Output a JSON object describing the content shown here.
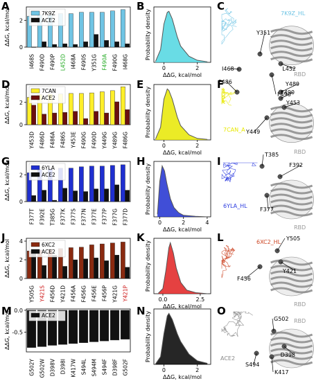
{
  "axis_label_ddg": "ΔΔG, kcal/mol",
  "axis_label_density": "Probability density",
  "chart_data": [
    {
      "panel": "A",
      "type": "bar",
      "categories": [
        "I468S",
        "F490D",
        "F490P",
        "L452D",
        "I468A",
        "F490S",
        "Y351G",
        "F490A",
        "F490G",
        "I468G"
      ],
      "series": [
        {
          "name": "7K9Z",
          "color": "#6fc4e4",
          "values": [
            2.3,
            2.4,
            2.4,
            2.5,
            2.5,
            2.6,
            2.6,
            2.6,
            2.7,
            2.8
          ]
        },
        {
          "name": "ACE2",
          "color": "#111111",
          "values": [
            0.0,
            0.4,
            0.2,
            0.25,
            0.2,
            0.4,
            0.95,
            0.5,
            0.4,
            0.25
          ]
        }
      ],
      "ylim": [
        0,
        3
      ],
      "yticks": [
        "0",
        "2"
      ],
      "ylabel": "ΔΔG, kcal/mol",
      "legend": "top-left",
      "category_colors": [
        "#000",
        "#000",
        "#000",
        "#22aa22",
        "#000",
        "#000",
        "#000",
        "#22aa22",
        "#000",
        "#000"
      ]
    },
    {
      "panel": "B",
      "type": "area",
      "color": "#4fd6e0",
      "x": [
        -0.5,
        -0.2,
        0,
        0.2,
        0.3,
        0.5,
        0.8,
        1.0,
        1.5,
        2.0,
        2.6
      ],
      "y": [
        0.02,
        0.25,
        0.75,
        0.98,
        1.0,
        0.85,
        0.5,
        0.32,
        0.12,
        0.04,
        0.01
      ],
      "xlim": [
        -0.6,
        2.8
      ],
      "xticks": [
        "0",
        "2"
      ],
      "xlabel": "ΔΔG, kcal/mol",
      "ylabel": "Probability density"
    },
    {
      "panel": "D",
      "type": "bar",
      "categories": [
        "Y453D",
        "F486D",
        "F486A",
        "F486S",
        "Y453E",
        "F490G",
        "F490D",
        "Y449G",
        "Y489G",
        "F486G"
      ],
      "series": [
        {
          "name": "7CAN",
          "color": "#ffef2a",
          "values": [
            2.45,
            2.7,
            2.75,
            2.75,
            2.8,
            2.8,
            2.85,
            2.95,
            3.05,
            3.4
          ]
        },
        {
          "name": "ACE2",
          "color": "#6b0f0f",
          "values": [
            1.75,
            0.95,
            1.05,
            1.1,
            1.2,
            0.55,
            1.2,
            1.05,
            2.05,
            1.35
          ]
        }
      ],
      "ylim": [
        0,
        3.6
      ],
      "yticks": [
        "0",
        "2"
      ],
      "ylabel": "ΔΔG, kcal/mol",
      "legend": "top-left"
    },
    {
      "panel": "E",
      "type": "area",
      "color": "#e8e800",
      "x": [
        -0.5,
        -0.2,
        0,
        0.2,
        0.3,
        0.5,
        0.8,
        1.0,
        1.5,
        2.0,
        2.6
      ],
      "y": [
        0.02,
        0.25,
        0.8,
        1.0,
        0.97,
        0.8,
        0.45,
        0.28,
        0.1,
        0.03,
        0.01
      ],
      "xlim": [
        -0.6,
        2.8
      ],
      "xticks": [
        "0",
        "2"
      ],
      "xlabel": "ΔΔG, kcal/mol",
      "ylabel": "Probability density"
    },
    {
      "panel": "G",
      "type": "bar",
      "categories": [
        "F377T",
        "F392E",
        "T385G",
        "F377K",
        "F377S",
        "F377N",
        "F377E",
        "F377P",
        "F377G",
        "F377D"
      ],
      "series": [
        {
          "name": "6YLA",
          "color": "#1f2fd0",
          "values": [
            2.15,
            2.4,
            2.45,
            2.5,
            2.5,
            2.6,
            2.65,
            2.65,
            2.7,
            2.75
          ]
        },
        {
          "name": "ACE2",
          "color": "#111111",
          "values": [
            0.45,
            0.85,
            0.1,
            1.0,
            0.8,
            0.75,
            0.95,
            0.95,
            1.25,
            0.85
          ]
        }
      ],
      "ylim": [
        0,
        3
      ],
      "yticks": [
        "0",
        "2"
      ],
      "ylabel": "ΔΔG, kcal/mol",
      "legend": "top-left"
    },
    {
      "panel": "H",
      "type": "area",
      "color": "#1f2fd0",
      "x": [
        -0.2,
        0,
        0.2,
        0.4,
        0.6,
        0.9,
        1.2,
        1.6,
        2.0,
        3.0,
        4.0
      ],
      "y": [
        0.05,
        0.7,
        1.0,
        0.9,
        0.65,
        0.35,
        0.18,
        0.08,
        0.03,
        0.01,
        0.0
      ],
      "xlim": [
        -0.5,
        4.3
      ],
      "xticks": [
        "0",
        "2",
        "4"
      ],
      "xlabel": "ΔΔG, kcal/mol",
      "ylabel": "Probability density"
    },
    {
      "panel": "J",
      "type": "bar",
      "categories": [
        "Y505G",
        "Y421S",
        "F456D",
        "Y421D",
        "F456A",
        "F456G",
        "F456E",
        "F456P",
        "Y421G",
        "Y421P"
      ],
      "series": [
        {
          "name": "6XC2",
          "color": "#8a2a10",
          "values": [
            2.95,
            3.05,
            3.1,
            3.2,
            3.3,
            3.35,
            3.6,
            3.7,
            3.8,
            3.9
          ]
        },
        {
          "name": "ACE2",
          "color": "#111111",
          "values": [
            2.65,
            1.4,
            2.5,
            1.3,
            2.0,
            2.1,
            2.2,
            1.9,
            2.5,
            1.2
          ]
        }
      ],
      "ylim": [
        0,
        4.3
      ],
      "yticks": [
        "0",
        "2",
        "4"
      ],
      "ylabel": "ΔΔG, kcal/mol",
      "legend": "top-left",
      "category_colors": [
        "#000",
        "#cc1111",
        "#000",
        "#000",
        "#000",
        "#000",
        "#000",
        "#000",
        "#000",
        "#cc1111"
      ]
    },
    {
      "panel": "K",
      "type": "area",
      "color": "#e02020",
      "x": [
        -0.3,
        0,
        0.2,
        0.4,
        0.5,
        0.7,
        0.9,
        1.2,
        1.6,
        2.2,
        3.0
      ],
      "y": [
        0.01,
        0.1,
        0.45,
        0.9,
        1.0,
        0.8,
        0.5,
        0.22,
        0.07,
        0.02,
        0.0
      ],
      "xlim": [
        -0.6,
        3.2
      ],
      "xticks": [
        "0.0",
        "2.5"
      ],
      "xlabel": "ΔΔG, kcal/mol",
      "ylabel": "Probability density"
    },
    {
      "panel": "M",
      "type": "bar",
      "categories": [
        "G502Y",
        "G502W",
        "D398V",
        "D398I",
        "K417W",
        "S494L",
        "S494M",
        "S494F",
        "D398F",
        "G502F"
      ],
      "series": [
        {
          "name": "ACE2",
          "color": "#111111",
          "values": [
            -0.85,
            -0.83,
            -0.8,
            -0.78,
            -0.76,
            -0.74,
            -0.72,
            -0.7,
            -0.68,
            -0.66
          ]
        }
      ],
      "ylim": [
        -0.95,
        0.03
      ],
      "yticks": [
        "0.0",
        "-0.5"
      ],
      "ylabel": "ΔΔG, kcal/mol",
      "legend": "top-left"
    },
    {
      "panel": "N",
      "type": "area",
      "color": "#000000",
      "x": [
        -0.5,
        -0.2,
        0,
        0.2,
        0.3,
        0.5,
        0.8,
        1.0,
        1.5,
        2.0,
        2.6
      ],
      "y": [
        0.01,
        0.15,
        0.6,
        0.95,
        1.0,
        0.88,
        0.6,
        0.45,
        0.2,
        0.07,
        0.02
      ],
      "xlim": [
        -0.6,
        2.8
      ],
      "xticks": [
        "0",
        "2"
      ],
      "xlabel": "ΔΔG, kcal/mol",
      "ylabel": "Probability density"
    }
  ],
  "structures": [
    {
      "panel": "C",
      "chain_label": "7K9Z_HL",
      "chain_color": "#6fc4e4",
      "rbd": "RBD",
      "residues": [
        {
          "label": "Y351",
          "x": 370,
          "y": 50,
          "rx": 375,
          "ry": 78
        },
        {
          "label": "I468",
          "x": 320,
          "y": 102,
          "rx": 345,
          "ry": 100
        },
        {
          "label": "L452",
          "x": 427,
          "y": 102,
          "rx": 405,
          "ry": 92
        },
        {
          "label": "F490",
          "x": 400,
          "y": 139,
          "rx": 392,
          "ry": 108
        }
      ]
    },
    {
      "panel": "F",
      "chain_label": "7CAN_A",
      "chain_color": "#e8e800",
      "rbd": "RBD",
      "residues": [
        {
          "label": "F486",
          "x": 315,
          "y": 121,
          "rx": 342,
          "ry": 133
        },
        {
          "label": "Y489",
          "x": 432,
          "y": 124,
          "rx": 405,
          "ry": 133
        },
        {
          "label": "F490",
          "x": 425,
          "y": 136,
          "rx": 405,
          "ry": 142
        },
        {
          "label": "Y453",
          "x": 433,
          "y": 151,
          "rx": 410,
          "ry": 155
        },
        {
          "label": "Y449",
          "x": 355,
          "y": 193,
          "rx": 385,
          "ry": 170
        }
      ]
    },
    {
      "panel": "I",
      "chain_label": "6YLA_HL",
      "chain_color": "#2a3adf",
      "rbd": "RBD",
      "residues": [
        {
          "label": "T385",
          "x": 382,
          "y": 226,
          "rx": 378,
          "ry": 240
        },
        {
          "label": "F392",
          "x": 437,
          "y": 241,
          "rx": 404,
          "ry": 255
        },
        {
          "label": "F377",
          "x": 375,
          "y": 305,
          "rx": 385,
          "ry": 282
        }
      ]
    },
    {
      "panel": "L",
      "chain_label": "6XC2_HL",
      "chain_color": "#cc4422",
      "rbd": "RBD",
      "residues": [
        {
          "label": "Y505",
          "x": 413,
          "y": 347,
          "rx": 400,
          "ry": 362
        },
        {
          "label": "Y421",
          "x": 428,
          "y": 394,
          "rx": 405,
          "ry": 378
        },
        {
          "label": "F456",
          "x": 342,
          "y": 405,
          "rx": 375,
          "ry": 385
        }
      ]
    },
    {
      "panel": "O",
      "chain_label": "ACE2",
      "chain_color": "#888888",
      "rbd": "RBD",
      "residues": [
        {
          "label": "G502",
          "x": 395,
          "y": 463,
          "rx": 395,
          "ry": 478
        },
        {
          "label": "S494",
          "x": 354,
          "y": 529,
          "rx": 370,
          "ry": 510
        },
        {
          "label": "K417",
          "x": 396,
          "y": 540,
          "rx": 392,
          "ry": 515
        },
        {
          "label": "D398",
          "x": 426,
          "y": 515,
          "rx": 410,
          "ry": 500
        }
      ]
    }
  ]
}
